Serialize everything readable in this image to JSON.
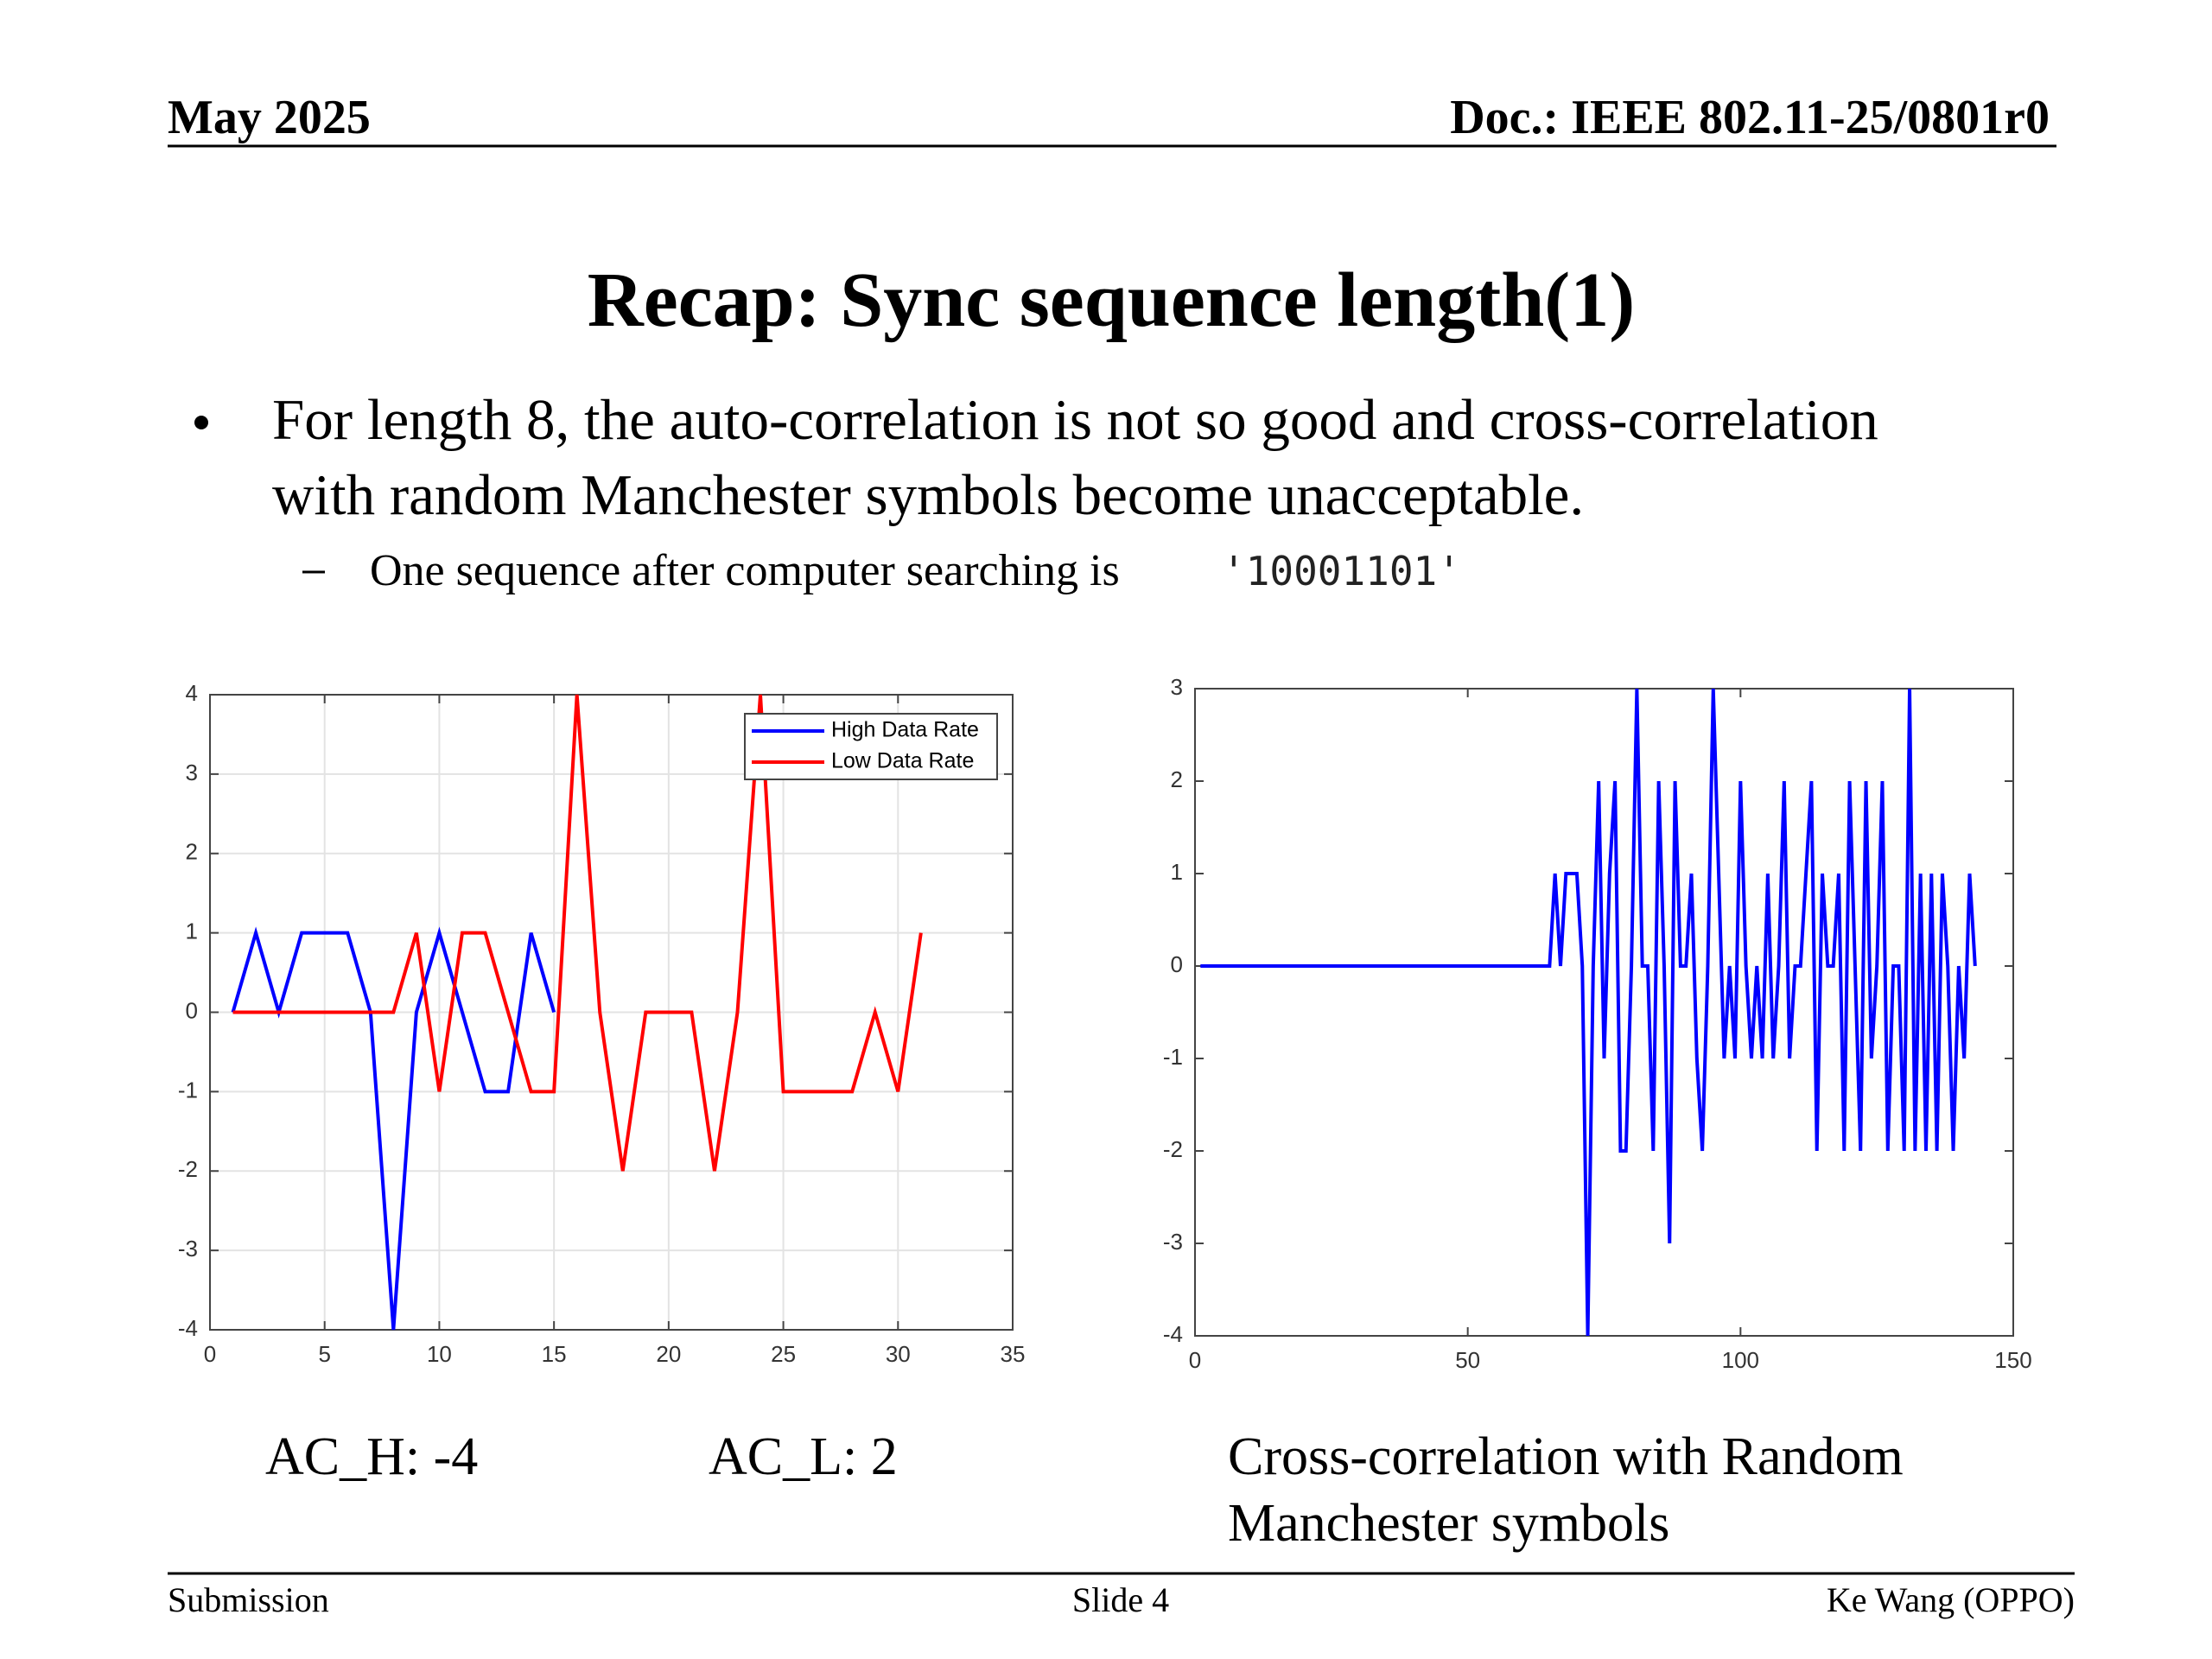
{
  "header": {
    "date": "May 2025",
    "doc": "Doc.: IEEE 802.11-25/0801r0"
  },
  "title": "Recap: Sync sequence length(1)",
  "bullet": {
    "lines": [
      "For length 8, the auto-correlation is not so good and cross-correlation",
      "with random Manchester symbols become unacceptable."
    ]
  },
  "sub_bullet": {
    "text": "One sequence after computer searching is",
    "code": "'10001101'"
  },
  "chart_data": [
    {
      "type": "line",
      "xlim": [
        0,
        35
      ],
      "ylim": [
        -4,
        4
      ],
      "xticks": [
        0,
        5,
        10,
        15,
        20,
        25,
        30,
        35
      ],
      "yticks": [
        -4,
        -3,
        -2,
        -1,
        0,
        1,
        2,
        3,
        4
      ],
      "grid": true,
      "legend": "upper right",
      "series": [
        {
          "name": "High Data Rate",
          "color": "#0000ff",
          "x": [
            1,
            2,
            3,
            4,
            5,
            6,
            7,
            8,
            9,
            10,
            11,
            12,
            13,
            14,
            15
          ],
          "values": [
            0,
            1,
            0,
            1,
            1,
            1,
            0,
            -4,
            0,
            1,
            0,
            -1,
            -1,
            1,
            0
          ]
        },
        {
          "name": "Low Data Rate",
          "color": "#ff0000",
          "x": [
            1,
            2,
            3,
            4,
            5,
            6,
            7,
            8,
            9,
            10,
            11,
            12,
            13,
            14,
            15,
            16,
            17,
            18,
            19,
            20,
            21,
            22,
            23,
            24,
            25,
            26,
            27,
            28,
            29,
            30,
            31
          ],
          "values": [
            0,
            0,
            0,
            0,
            0,
            0,
            0,
            0,
            1,
            -1,
            1,
            1,
            0,
            -1,
            -1,
            4,
            0,
            -2,
            0,
            0,
            0,
            -2,
            0,
            4,
            -1,
            -1,
            -1,
            -1,
            0,
            -1,
            1
          ]
        }
      ]
    },
    {
      "type": "line",
      "xlim": [
        0,
        150
      ],
      "ylim": [
        -4,
        3
      ],
      "xticks": [
        0,
        50,
        100,
        150
      ],
      "yticks": [
        -4,
        -3,
        -2,
        -1,
        0,
        1,
        2,
        3
      ],
      "grid": false,
      "series": [
        {
          "color": "#0000ff",
          "x": [
            1,
            2,
            3,
            4,
            5,
            6,
            7,
            8,
            9,
            10,
            11,
            12,
            13,
            14,
            15,
            16,
            17,
            18,
            19,
            20,
            21,
            22,
            23,
            24,
            25,
            26,
            27,
            28,
            29,
            30,
            31,
            32,
            33,
            34,
            35,
            36,
            37,
            38,
            39,
            40,
            41,
            42,
            43,
            44,
            45,
            46,
            47,
            48,
            49,
            50,
            51,
            52,
            53,
            54,
            55,
            56,
            57,
            58,
            59,
            60,
            61,
            62,
            63,
            64,
            65,
            66,
            67,
            68,
            69,
            70,
            71,
            72,
            73,
            74,
            75,
            76,
            77,
            78,
            79,
            80,
            81,
            82,
            83,
            84,
            85,
            86,
            87,
            88,
            89,
            90,
            91,
            92,
            93,
            94,
            95,
            96,
            97,
            98,
            99,
            100,
            101,
            102,
            103,
            104,
            105,
            106,
            107,
            108,
            109,
            110,
            111,
            112,
            113,
            114,
            115,
            116,
            117,
            118,
            119,
            120,
            121,
            122,
            123,
            124,
            125,
            126,
            127,
            128,
            129,
            130,
            131,
            132,
            133,
            134,
            135,
            136,
            137,
            138,
            139,
            140,
            141,
            142,
            143
          ],
          "values": [
            0,
            0,
            0,
            0,
            0,
            0,
            0,
            0,
            0,
            0,
            0,
            0,
            0,
            0,
            0,
            0,
            0,
            0,
            0,
            0,
            0,
            0,
            0,
            0,
            0,
            0,
            0,
            0,
            0,
            0,
            0,
            0,
            0,
            0,
            0,
            0,
            0,
            0,
            0,
            0,
            0,
            0,
            0,
            0,
            0,
            0,
            0,
            0,
            0,
            0,
            0,
            0,
            0,
            0,
            0,
            0,
            0,
            0,
            0,
            0,
            0,
            0,
            0,
            0,
            0,
            1,
            0,
            1,
            1,
            1,
            0,
            -4,
            0,
            2,
            -1,
            1,
            2,
            -2,
            -2,
            0,
            3,
            0,
            0,
            -2,
            2,
            0,
            -3,
            2,
            0,
            0,
            1,
            -1,
            -2,
            0,
            3,
            1,
            -1,
            0,
            -1,
            2,
            0,
            -1,
            0,
            -1,
            1,
            -1,
            0,
            2,
            -1,
            0,
            0,
            1,
            2,
            -2,
            1,
            0,
            0,
            1,
            -2,
            2,
            0,
            -2,
            2,
            -1,
            0,
            2,
            -2,
            0,
            0,
            -2,
            3,
            -2,
            1,
            -2,
            1,
            -2,
            1,
            0,
            -2,
            0,
            -1,
            1,
            0
          ]
        }
      ]
    }
  ],
  "captions": {
    "ac_h": "AC_H: -4",
    "ac_l": "AC_L: 2",
    "cross": [
      "Cross-correlation with Random",
      "Manchester symbols"
    ]
  },
  "footer": {
    "left": "Submission",
    "center": "Slide 4",
    "right": "Ke Wang (OPPO)"
  }
}
